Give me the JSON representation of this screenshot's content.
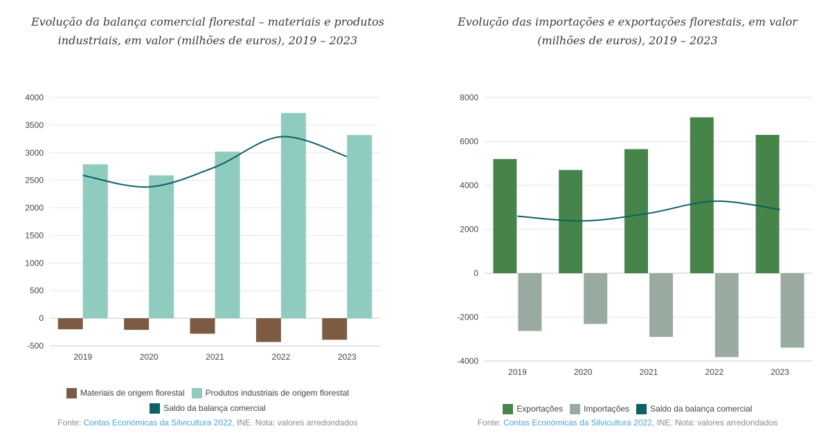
{
  "charts": [
    {
      "title_lines": [
        "Evolução da balança comercial florestal – materiais e produtos",
        "industriais, em valor (milhões de euros), 2019 – 2023"
      ],
      "legend": [
        {
          "label": "Materiais de origem florestal",
          "color": "#7d5a44"
        },
        {
          "label": "Produtos industriais de origem florestal",
          "color": "#8fcbbf"
        },
        {
          "label": "Saldo da balança comercial",
          "color": "#0b5f66"
        }
      ],
      "source": {
        "prefix": "Fonte: ",
        "link": "Contas Económicas da Silvicultura 2022",
        "suffix": ", INE. Nota: valores arredondados"
      }
    },
    {
      "title_lines": [
        "Evolução das importações e exportações florestais, em valor",
        "(milhões de euros), 2019 – 2023"
      ],
      "legend": [
        {
          "label": "Exportações",
          "color": "#468449"
        },
        {
          "label": "Importações",
          "color": "#99aba1"
        },
        {
          "label": "Saldo da balança comercial",
          "color": "#0b5f66"
        }
      ],
      "source": {
        "prefix": "Fonte: ",
        "link": "Contas Económicas da Silvicultura 2022",
        "suffix": ", INE. Nota: valores arredondados"
      }
    }
  ],
  "chart_data": [
    {
      "type": "bar",
      "title": "Evolução da balança comercial florestal – materiais e produtos industriais, em valor (milhões de euros), 2019 – 2023",
      "categories": [
        "2019",
        "2020",
        "2021",
        "2022",
        "2023"
      ],
      "ylim": [
        -500,
        4000
      ],
      "yticks": [
        -500,
        0,
        500,
        1000,
        1500,
        2000,
        2500,
        3000,
        3500,
        4000
      ],
      "grid": true,
      "legend_position": "bottom",
      "series": [
        {
          "name": "Materiais de origem florestal",
          "type": "bar",
          "color": "#7d5a44",
          "values": [
            -200,
            -210,
            -280,
            -430,
            -390
          ]
        },
        {
          "name": "Produtos industriais de origem florestal",
          "type": "bar",
          "color": "#8fcbbf",
          "values": [
            2790,
            2590,
            3020,
            3720,
            3320
          ]
        },
        {
          "name": "Saldo da balança comercial",
          "type": "line",
          "color": "#0b5f66",
          "values": [
            2590,
            2380,
            2740,
            3290,
            2930
          ]
        }
      ]
    },
    {
      "type": "bar",
      "title": "Evolução das importações e exportações florestais, em valor (milhões de euros), 2019 – 2023",
      "categories": [
        "2019",
        "2020",
        "2021",
        "2022",
        "2023"
      ],
      "ylim": [
        -4000,
        8000
      ],
      "yticks": [
        -4000,
        -2000,
        0,
        2000,
        4000,
        6000,
        8000
      ],
      "grid": true,
      "legend_position": "bottom",
      "series": [
        {
          "name": "Exportações",
          "type": "bar",
          "color": "#468449",
          "values": [
            5200,
            4700,
            5650,
            7100,
            6300
          ]
        },
        {
          "name": "Importações",
          "type": "bar",
          "color": "#99aba1",
          "values": [
            -2630,
            -2310,
            -2900,
            -3820,
            -3390
          ]
        },
        {
          "name": "Saldo da balança comercial",
          "type": "line",
          "color": "#0b5f66",
          "values": [
            2600,
            2380,
            2730,
            3280,
            2900
          ]
        }
      ]
    }
  ]
}
